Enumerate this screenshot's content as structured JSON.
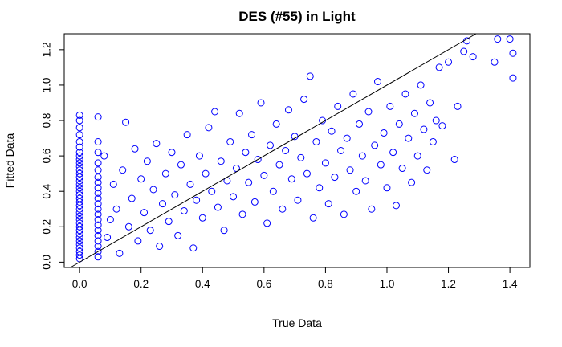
{
  "chart_data": {
    "type": "scatter",
    "title": "DES (#55) in Light",
    "xlabel": "True Data",
    "ylabel": "Fitted Data",
    "xlim": [
      -0.05,
      1.465
    ],
    "ylim": [
      -0.03,
      1.29
    ],
    "x_ticks": [
      "0.0",
      "0.2",
      "0.4",
      "0.6",
      "0.8",
      "1.0",
      "1.2",
      "1.4"
    ],
    "y_ticks": [
      "0.0",
      "0.2",
      "0.4",
      "0.6",
      "0.8",
      "1.0",
      "1.2"
    ],
    "point_color": "#0000ff",
    "line_color": "#000000",
    "reference_line": {
      "type": "identity",
      "slope": 1,
      "intercept": 0
    },
    "grid": false,
    "legend": "none",
    "points": [
      [
        0,
        0.02
      ],
      [
        0,
        0.04
      ],
      [
        0,
        0.06
      ],
      [
        0,
        0.08
      ],
      [
        0,
        0.1
      ],
      [
        0,
        0.12
      ],
      [
        0,
        0.14
      ],
      [
        0,
        0.16
      ],
      [
        0,
        0.18
      ],
      [
        0,
        0.2
      ],
      [
        0,
        0.22
      ],
      [
        0,
        0.24
      ],
      [
        0,
        0.26
      ],
      [
        0,
        0.28
      ],
      [
        0,
        0.3
      ],
      [
        0,
        0.32
      ],
      [
        0,
        0.34
      ],
      [
        0,
        0.36
      ],
      [
        0,
        0.38
      ],
      [
        0,
        0.4
      ],
      [
        0,
        0.42
      ],
      [
        0,
        0.44
      ],
      [
        0,
        0.46
      ],
      [
        0,
        0.48
      ],
      [
        0,
        0.5
      ],
      [
        0,
        0.52
      ],
      [
        0,
        0.54
      ],
      [
        0,
        0.56
      ],
      [
        0,
        0.58
      ],
      [
        0,
        0.6
      ],
      [
        0,
        0.62
      ],
      [
        0,
        0.65
      ],
      [
        0,
        0.68
      ],
      [
        0,
        0.72
      ],
      [
        0,
        0.76
      ],
      [
        0,
        0.8
      ],
      [
        0,
        0.83
      ],
      [
        0.06,
        0.03
      ],
      [
        0.06,
        0.06
      ],
      [
        0.06,
        0.09
      ],
      [
        0.06,
        0.12
      ],
      [
        0.06,
        0.15
      ],
      [
        0.06,
        0.18
      ],
      [
        0.06,
        0.21
      ],
      [
        0.06,
        0.24
      ],
      [
        0.06,
        0.27
      ],
      [
        0.06,
        0.3
      ],
      [
        0.06,
        0.33
      ],
      [
        0.06,
        0.36
      ],
      [
        0.06,
        0.39
      ],
      [
        0.06,
        0.42
      ],
      [
        0.06,
        0.45
      ],
      [
        0.06,
        0.48
      ],
      [
        0.06,
        0.52
      ],
      [
        0.06,
        0.56
      ],
      [
        0.06,
        0.62
      ],
      [
        0.06,
        0.68
      ],
      [
        0.06,
        0.82
      ],
      [
        0.08,
        0.6
      ],
      [
        0.09,
        0.14
      ],
      [
        0.1,
        0.24
      ],
      [
        0.11,
        0.44
      ],
      [
        0.12,
        0.3
      ],
      [
        0.13,
        0.05
      ],
      [
        0.14,
        0.52
      ],
      [
        0.15,
        0.79
      ],
      [
        0.16,
        0.2
      ],
      [
        0.17,
        0.36
      ],
      [
        0.18,
        0.64
      ],
      [
        0.19,
        0.12
      ],
      [
        0.2,
        0.47
      ],
      [
        0.21,
        0.28
      ],
      [
        0.22,
        0.57
      ],
      [
        0.23,
        0.18
      ],
      [
        0.24,
        0.41
      ],
      [
        0.25,
        0.67
      ],
      [
        0.26,
        0.09
      ],
      [
        0.27,
        0.33
      ],
      [
        0.28,
        0.5
      ],
      [
        0.29,
        0.23
      ],
      [
        0.3,
        0.62
      ],
      [
        0.31,
        0.38
      ],
      [
        0.32,
        0.15
      ],
      [
        0.33,
        0.55
      ],
      [
        0.34,
        0.29
      ],
      [
        0.35,
        0.72
      ],
      [
        0.36,
        0.44
      ],
      [
        0.37,
        0.08
      ],
      [
        0.38,
        0.35
      ],
      [
        0.39,
        0.6
      ],
      [
        0.4,
        0.25
      ],
      [
        0.41,
        0.5
      ],
      [
        0.42,
        0.76
      ],
      [
        0.43,
        0.4
      ],
      [
        0.44,
        0.85
      ],
      [
        0.45,
        0.31
      ],
      [
        0.46,
        0.57
      ],
      [
        0.47,
        0.18
      ],
      [
        0.48,
        0.46
      ],
      [
        0.49,
        0.68
      ],
      [
        0.5,
        0.37
      ],
      [
        0.51,
        0.53
      ],
      [
        0.52,
        0.84
      ],
      [
        0.53,
        0.27
      ],
      [
        0.54,
        0.62
      ],
      [
        0.55,
        0.45
      ],
      [
        0.56,
        0.72
      ],
      [
        0.57,
        0.34
      ],
      [
        0.58,
        0.58
      ],
      [
        0.59,
        0.9
      ],
      [
        0.6,
        0.49
      ],
      [
        0.61,
        0.22
      ],
      [
        0.62,
        0.66
      ],
      [
        0.63,
        0.4
      ],
      [
        0.64,
        0.78
      ],
      [
        0.65,
        0.55
      ],
      [
        0.66,
        0.3
      ],
      [
        0.67,
        0.63
      ],
      [
        0.68,
        0.86
      ],
      [
        0.69,
        0.47
      ],
      [
        0.7,
        0.71
      ],
      [
        0.71,
        0.35
      ],
      [
        0.72,
        0.59
      ],
      [
        0.73,
        0.92
      ],
      [
        0.74,
        0.5
      ],
      [
        0.75,
        1.05
      ],
      [
        0.76,
        0.25
      ],
      [
        0.77,
        0.68
      ],
      [
        0.78,
        0.42
      ],
      [
        0.79,
        0.8
      ],
      [
        0.8,
        0.56
      ],
      [
        0.81,
        0.33
      ],
      [
        0.82,
        0.74
      ],
      [
        0.83,
        0.48
      ],
      [
        0.84,
        0.88
      ],
      [
        0.85,
        0.63
      ],
      [
        0.86,
        0.27
      ],
      [
        0.87,
        0.7
      ],
      [
        0.88,
        0.52
      ],
      [
        0.89,
        0.95
      ],
      [
        0.9,
        0.4
      ],
      [
        0.91,
        0.78
      ],
      [
        0.92,
        0.6
      ],
      [
        0.93,
        0.46
      ],
      [
        0.94,
        0.85
      ],
      [
        0.95,
        0.3
      ],
      [
        0.96,
        0.66
      ],
      [
        0.97,
        1.02
      ],
      [
        0.98,
        0.55
      ],
      [
        0.99,
        0.73
      ],
      [
        1.0,
        0.42
      ],
      [
        1.01,
        0.88
      ],
      [
        1.02,
        0.62
      ],
      [
        1.03,
        0.32
      ],
      [
        1.04,
        0.78
      ],
      [
        1.05,
        0.53
      ],
      [
        1.06,
        0.95
      ],
      [
        1.07,
        0.7
      ],
      [
        1.08,
        0.45
      ],
      [
        1.09,
        0.84
      ],
      [
        1.1,
        0.6
      ],
      [
        1.11,
        1.0
      ],
      [
        1.12,
        0.75
      ],
      [
        1.13,
        0.52
      ],
      [
        1.14,
        0.9
      ],
      [
        1.15,
        0.68
      ],
      [
        1.16,
        0.8
      ],
      [
        1.17,
        1.1
      ],
      [
        1.18,
        0.77
      ],
      [
        1.2,
        1.13
      ],
      [
        1.22,
        0.58
      ],
      [
        1.23,
        0.88
      ],
      [
        1.25,
        1.19
      ],
      [
        1.26,
        1.25
      ],
      [
        1.28,
        1.16
      ],
      [
        1.35,
        1.13
      ],
      [
        1.36,
        1.26
      ],
      [
        1.4,
        1.26
      ],
      [
        1.41,
        1.18
      ],
      [
        1.41,
        1.04
      ]
    ]
  }
}
